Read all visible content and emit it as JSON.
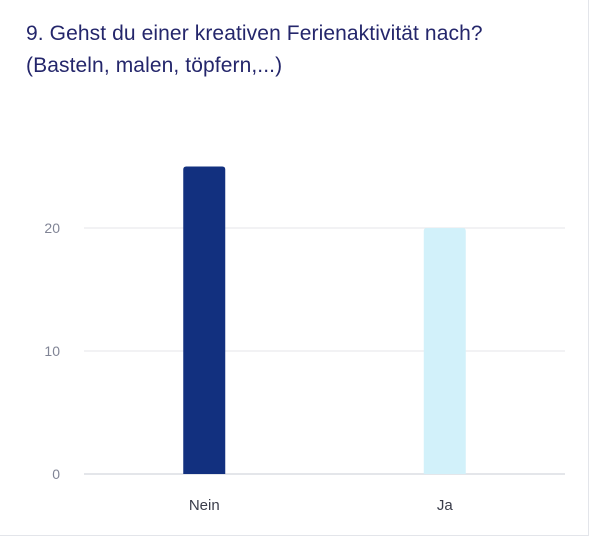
{
  "chart_data": {
    "type": "bar",
    "title": "9. Gehst du einer kreativen Ferienaktivität nach? (Basteln, malen, töpfern,...)",
    "categories": [
      "Nein",
      "Ja"
    ],
    "values": [
      25,
      20
    ],
    "colors": [
      "#12307f",
      "#d2f1fa"
    ],
    "gridline_color": "#e4e6ea",
    "axis_color": "#c9ccd4",
    "ylim": [
      0,
      26.5
    ],
    "yticks": [
      0,
      10,
      20
    ],
    "grid": true,
    "legend": "none",
    "xlabel": "",
    "ylabel": ""
  }
}
